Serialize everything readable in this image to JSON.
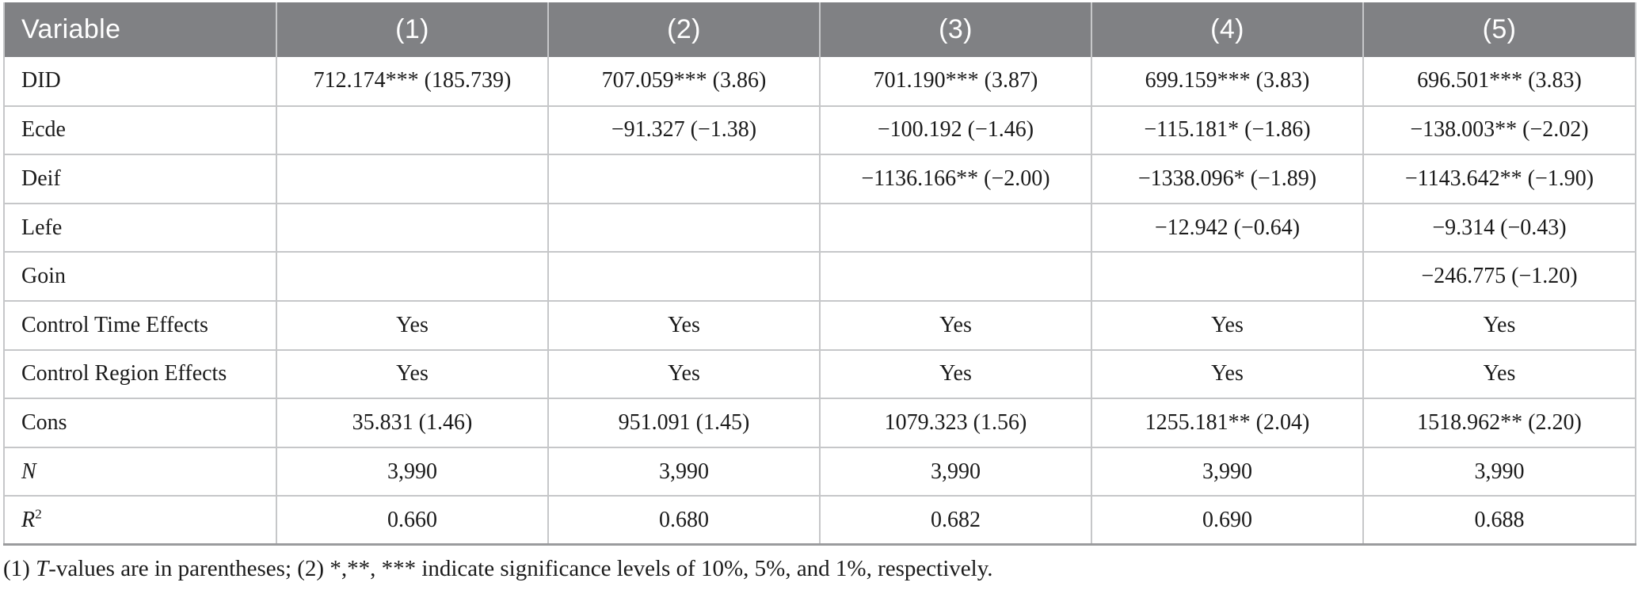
{
  "table": {
    "header": {
      "variable_label": "Variable",
      "columns": [
        "(1)",
        "(2)",
        "(3)",
        "(4)",
        "(5)"
      ]
    },
    "rows": [
      {
        "label": "DID",
        "cells": [
          "712.174*** (185.739)",
          "707.059*** (3.86)",
          "701.190*** (3.87)",
          "699.159*** (3.83)",
          "696.501*** (3.83)"
        ]
      },
      {
        "label": "Ecde",
        "cells": [
          "",
          "−91.327 (−1.38)",
          "−100.192 (−1.46)",
          "−115.181* (−1.86)",
          "−138.003** (−2.02)"
        ]
      },
      {
        "label": "Deif",
        "cells": [
          "",
          "",
          "−1136.166** (−2.00)",
          "−1338.096* (−1.89)",
          "−1143.642** (−1.90)"
        ]
      },
      {
        "label": "Lefe",
        "cells": [
          "",
          "",
          "",
          "−12.942 (−0.64)",
          "−9.314 (−0.43)"
        ]
      },
      {
        "label": "Goin",
        "cells": [
          "",
          "",
          "",
          "",
          "−246.775 (−1.20)"
        ]
      },
      {
        "label": "Control Time Effects",
        "cells": [
          "Yes",
          "Yes",
          "Yes",
          "Yes",
          "Yes"
        ]
      },
      {
        "label": "Control Region Effects",
        "cells": [
          "Yes",
          "Yes",
          "Yes",
          "Yes",
          "Yes"
        ]
      },
      {
        "label": "Cons",
        "cells": [
          "35.831 (1.46)",
          "951.091 (1.45)",
          "1079.323 (1.56)",
          "1255.181** (2.04)",
          "1518.962** (2.20)"
        ]
      },
      {
        "label": "N",
        "label_italic": true,
        "cells": [
          "3,990",
          "3,990",
          "3,990",
          "3,990",
          "3,990"
        ]
      },
      {
        "label": "R",
        "label_italic": true,
        "label_sup": "2",
        "cells": [
          "0.660",
          "0.680",
          "0.682",
          "0.690",
          "0.688"
        ]
      }
    ],
    "footnote": {
      "part1": "(1) ",
      "italic_t": "T",
      "part2": "-values are in parentheses; (2) *,**, *** indicate significance levels of 10%, 5%, and 1%, respectively."
    }
  },
  "colors": {
    "header_bg": "#808184",
    "header_text": "#ffffff",
    "border": "#c6c7c9",
    "table_bottom_border": "#9a9b9d",
    "body_text": "#1b1b1b"
  }
}
